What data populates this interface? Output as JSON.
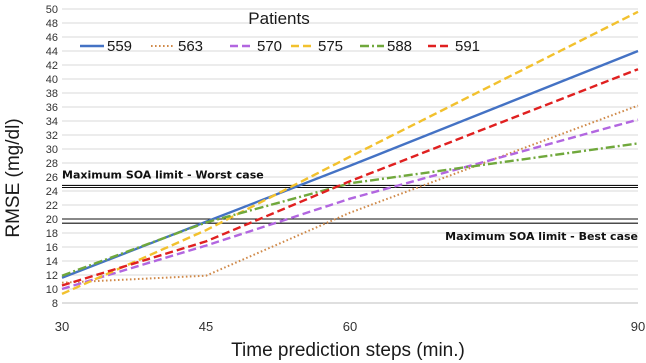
{
  "chart_data": {
    "type": "line",
    "title": "",
    "xlabel": "Time prediction steps (min.)",
    "ylabel": "RMSE (mg/dl)",
    "x": [
      30,
      45,
      60,
      90
    ],
    "xlim": [
      30,
      90
    ],
    "ylim": [
      8,
      50
    ],
    "yticks": [
      8,
      10,
      12,
      14,
      16,
      18,
      20,
      22,
      24,
      26,
      28,
      30,
      32,
      34,
      36,
      38,
      40,
      42,
      44,
      46,
      48,
      50
    ],
    "xticks": [
      30,
      45,
      60,
      90
    ],
    "grid": "horizontal",
    "legend": {
      "title": "Patients",
      "placement": "top-left"
    },
    "series": [
      {
        "name": "559",
        "values": [
          11.6,
          19.6,
          27.6,
          44.0
        ],
        "color": "#4472C4",
        "dash": "solid"
      },
      {
        "name": "563",
        "values": [
          10.9,
          11.9,
          20.9,
          36.2
        ],
        "color": "#D08A4A",
        "dash": "dotted"
      },
      {
        "name": "570",
        "values": [
          10.0,
          16.2,
          22.9,
          34.2
        ],
        "color": "#B266E0",
        "dash": "dashed"
      },
      {
        "name": "575",
        "values": [
          9.3,
          18.4,
          28.9,
          49.6
        ],
        "color": "#F2C12E",
        "dash": "dashed"
      },
      {
        "name": "588",
        "values": [
          11.9,
          19.5,
          25.1,
          30.8
        ],
        "color": "#70A83C",
        "dash": "dashdot"
      },
      {
        "name": "591",
        "values": [
          10.5,
          16.8,
          25.4,
          41.4
        ],
        "color": "#E02020",
        "dash": "dashed"
      }
    ],
    "reference_lines": [
      {
        "label": "Maximum SOA limit - Worst case",
        "y_upper": 24.8,
        "y_lower": 24.5
      },
      {
        "label": "Maximum SOA limit - Best case",
        "y_upper": 20.0,
        "y_lower": 19.4
      }
    ]
  }
}
